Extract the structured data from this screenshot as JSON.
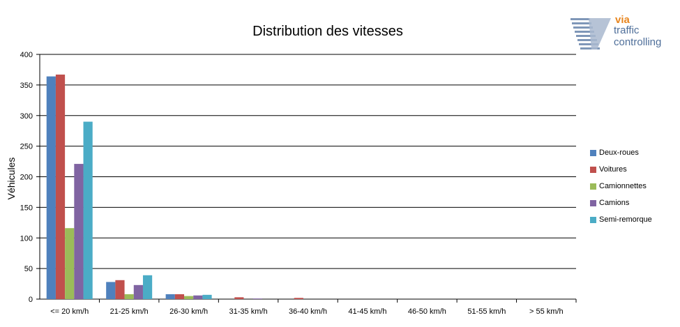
{
  "chart_data": {
    "type": "bar",
    "title": "Distribution des vitesses",
    "xlabel": "",
    "ylabel": "Véhicules",
    "ylim": [
      0,
      400
    ],
    "yticks": [
      0,
      50,
      100,
      150,
      200,
      250,
      300,
      350,
      400
    ],
    "grid": true,
    "legend_position": "right",
    "categories": [
      "<= 20 km/h",
      "21-25 km/h",
      "26-30 km/h",
      "31-35 km/h",
      "36-40 km/h",
      "41-45 km/h",
      "46-50 km/h",
      "51-55 km/h",
      "> 55 km/h"
    ],
    "series": [
      {
        "name": "Deux-roues",
        "color": "#4f81bd",
        "values": [
          364,
          28,
          8,
          0,
          0,
          0,
          0,
          0,
          0
        ]
      },
      {
        "name": "Voitures",
        "color": "#c0504d",
        "values": [
          367,
          31,
          8,
          3,
          2,
          0,
          0,
          0,
          0
        ]
      },
      {
        "name": "Camionnettes",
        "color": "#9bbb59",
        "values": [
          116,
          8,
          5,
          0,
          0,
          0,
          0,
          0,
          0
        ]
      },
      {
        "name": "Camions",
        "color": "#8064a2",
        "values": [
          221,
          23,
          6,
          1,
          0,
          0,
          0,
          0,
          0
        ]
      },
      {
        "name": "Semi-remorque",
        "color": "#4bacc6",
        "values": [
          290,
          39,
          7,
          0,
          0,
          0,
          0,
          0,
          0
        ]
      }
    ]
  },
  "logo": {
    "line1": "via",
    "line2": "traffic",
    "line3": "controlling",
    "icon": "via-logo-icon"
  }
}
